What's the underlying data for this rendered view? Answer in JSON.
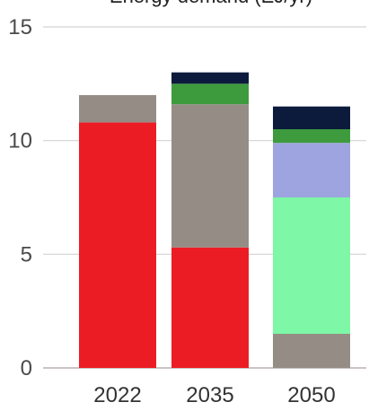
{
  "chart_data": {
    "type": "bar",
    "stacked": true,
    "title": "Energy demand (EJ/yr)",
    "xlabel": "",
    "ylabel": "",
    "categories": [
      "2022",
      "2035",
      "2050"
    ],
    "ylim": [
      0,
      15
    ],
    "yticks": [
      0,
      5,
      10,
      15
    ],
    "grid": true,
    "legend": "none",
    "series": [
      {
        "color": "#ec1c24",
        "values": [
          10.8,
          5.3,
          0.0
        ]
      },
      {
        "color": "#958d85",
        "values": [
          1.2,
          6.3,
          1.5
        ]
      },
      {
        "color": "#7ef7a6",
        "values": [
          0.0,
          0.0,
          6.0
        ]
      },
      {
        "color": "#9da4e0",
        "values": [
          0.0,
          0.0,
          2.4
        ]
      },
      {
        "color": "#3d9b3d",
        "values": [
          0.0,
          0.9,
          0.6
        ]
      },
      {
        "color": "#0c1b3c",
        "values": [
          0.0,
          0.5,
          1.0
        ]
      }
    ]
  }
}
